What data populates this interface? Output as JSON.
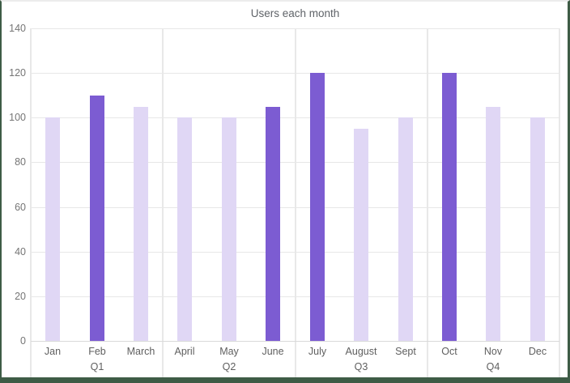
{
  "chart": {
    "title": "Users each month"
  },
  "chart_data": {
    "type": "bar",
    "title": "Users each month",
    "categories": [
      "Jan",
      "Feb",
      "March",
      "April",
      "May",
      "June",
      "July",
      "August",
      "Sept",
      "Oct",
      "Nov",
      "Dec"
    ],
    "values": [
      100,
      110,
      105,
      100,
      100,
      105,
      120,
      95,
      100,
      120,
      105,
      100
    ],
    "emphasis": [
      false,
      true,
      false,
      false,
      false,
      true,
      true,
      false,
      false,
      true,
      false,
      false
    ],
    "group_labels": [
      "Q1",
      "Q2",
      "Q3",
      "Q4"
    ],
    "months_per_group": 3,
    "xlabel": "",
    "ylabel": "",
    "ylim": [
      0,
      140
    ],
    "yticks": [
      0,
      20,
      40,
      60,
      80,
      100,
      120,
      140
    ],
    "grid": true,
    "legend": "none",
    "colors": {
      "bar_default": "#E0D7F5",
      "bar_emphasis": "#7C5CD2",
      "gridline": "#E7E7E7",
      "axis_line": "#D9D9D9",
      "separator_line": "#E8E8E8",
      "tick_text": "#757575",
      "label_text": "#5F5F5F",
      "title_text": "#5F6368",
      "frame_border": "#3E5C46"
    }
  }
}
